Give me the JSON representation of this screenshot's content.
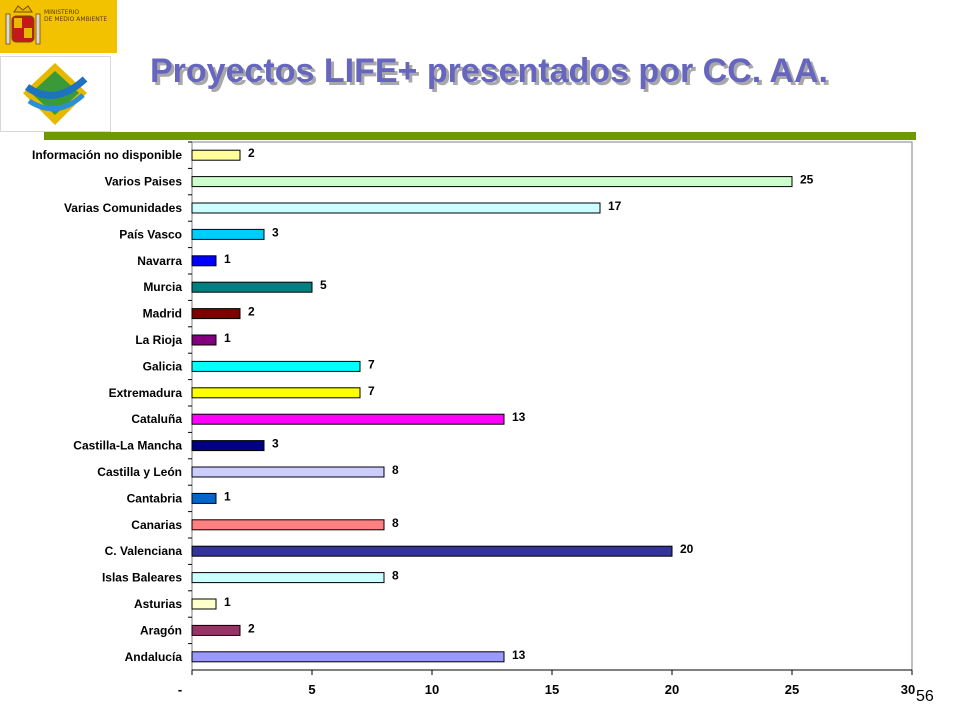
{
  "header": {
    "title": "Proyectos LIFE+ presentados por CC. AA.",
    "ministry_logo_text": "MINISTERIO\nDE MEDIO AMBIENTE",
    "network_logo_icon": "red-logo-icon",
    "accent_color": "#6e9a00"
  },
  "footer": {
    "page_number": "56"
  },
  "chart_data": {
    "type": "bar",
    "orientation": "horizontal",
    "categories": [
      "Información no disponible",
      "Varios Paises",
      "Varias Comunidades",
      "País Vasco",
      "Navarra",
      "Murcia",
      "Madrid",
      "La Rioja",
      "Galicia",
      "Extremadura",
      "Cataluña",
      "Castilla-La Mancha",
      "Castilla y León",
      "Cantabria",
      "Canarias",
      "C. Valenciana",
      "Islas Baleares",
      "Asturias",
      "Aragón",
      "Andalucía"
    ],
    "values": [
      2,
      25,
      17,
      3,
      1,
      5,
      2,
      1,
      7,
      7,
      13,
      3,
      8,
      1,
      8,
      20,
      8,
      1,
      2,
      13
    ],
    "colors": [
      "#ffff99",
      "#ccffcc",
      "#ccffff",
      "#00ccff",
      "#0000ff",
      "#008080",
      "#800000",
      "#800080",
      "#00ffff",
      "#ffff00",
      "#ff00ff",
      "#000080",
      "#ccccff",
      "#0066cc",
      "#ff8080",
      "#333399",
      "#ccffff",
      "#ffffcc",
      "#993366",
      "#9999ff"
    ],
    "xlim": [
      0,
      30
    ],
    "x_ticks": [
      "-",
      "5",
      "10",
      "15",
      "20",
      "25",
      "30"
    ],
    "grid": false,
    "legend": "none",
    "data_labels": true
  }
}
